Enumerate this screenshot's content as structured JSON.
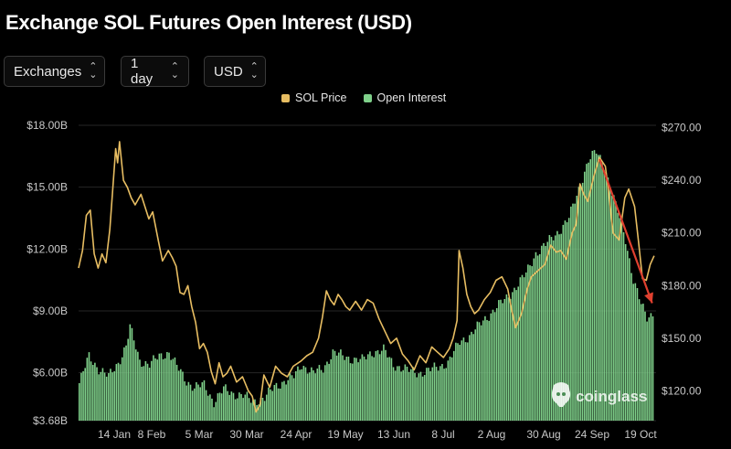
{
  "title": "Exchange SOL Futures Open Interest (USD)",
  "controls": {
    "exchanges": "Exchanges",
    "interval": "1 day",
    "currency": "USD"
  },
  "watermark": "coinglass",
  "colors": {
    "price": "#e7bd62",
    "oi": "#7fd08a",
    "annotation_arrow": "#e0402f",
    "grid": "#262626",
    "background": "#000000"
  },
  "chart_data": {
    "type": "bar+line",
    "title": "Exchange SOL Futures Open Interest (USD)",
    "legend": [
      {
        "name": "SOL Price",
        "color": "#e7bd62"
      },
      {
        "name": "Open Interest",
        "color": "#7fd08a"
      }
    ],
    "legend_position": "top-center",
    "grid": true,
    "x_ticks": [
      "14 Jan",
      "8 Feb",
      "5 Mar",
      "30 Mar",
      "24 Apr",
      "19 May",
      "13 Jun",
      "8 Jul",
      "2 Aug",
      "30 Aug",
      "24 Sep",
      "19 Oct"
    ],
    "left_axis": {
      "labels": [
        "$18.00B",
        "$15.00B",
        "$12.00B",
        "$9.00B",
        "$6.00B",
        "$3.68B"
      ],
      "values": [
        18,
        15,
        12,
        9,
        6,
        3.68
      ],
      "unit": "B USD",
      "range": [
        3.68,
        18
      ]
    },
    "right_axis": {
      "labels": [
        "$270.00",
        "$240.00",
        "$210.00",
        "$180.00",
        "$150.00",
        "$120.00"
      ],
      "values": [
        270,
        240,
        210,
        180,
        150,
        120
      ],
      "range": [
        103,
        275
      ]
    },
    "x_range": [
      "2022-12-31",
      "2023-10-23"
    ],
    "series": [
      {
        "name": "Open Interest",
        "axis": "left",
        "kind": "bar",
        "points": [
          [
            "2022-12-31",
            5.5
          ],
          [
            "2023-01-05",
            6.8
          ],
          [
            "2023-01-10",
            6.2
          ],
          [
            "2023-01-15",
            5.8
          ],
          [
            "2023-01-20",
            6.5
          ],
          [
            "2023-01-24",
            7.3
          ],
          [
            "2023-01-26",
            8.2
          ],
          [
            "2023-01-31",
            6.6
          ],
          [
            "2023-02-05",
            6.4
          ],
          [
            "2023-02-10",
            6.8
          ],
          [
            "2023-02-15",
            7.0
          ],
          [
            "2023-02-19",
            6.3
          ],
          [
            "2023-02-24",
            5.6
          ],
          [
            "2023-02-28",
            5.3
          ],
          [
            "2023-03-05",
            5.4
          ],
          [
            "2023-03-10",
            4.6
          ],
          [
            "2023-03-15",
            5.2
          ],
          [
            "2023-03-20",
            5.0
          ],
          [
            "2023-03-25",
            4.9
          ],
          [
            "2023-03-30",
            4.6
          ],
          [
            "2023-04-05",
            4.8
          ],
          [
            "2023-04-10",
            5.3
          ],
          [
            "2023-04-15",
            5.6
          ],
          [
            "2023-04-20",
            5.8
          ],
          [
            "2023-04-24",
            6.4
          ],
          [
            "2023-04-30",
            6.0
          ],
          [
            "2023-05-05",
            6.2
          ],
          [
            "2023-05-10",
            7.0
          ],
          [
            "2023-05-15",
            6.8
          ],
          [
            "2023-05-19",
            6.7
          ],
          [
            "2023-05-25",
            6.6
          ],
          [
            "2023-05-30",
            7.0
          ],
          [
            "2023-06-05",
            7.1
          ],
          [
            "2023-06-10",
            6.4
          ],
          [
            "2023-06-13",
            6.3
          ],
          [
            "2023-06-18",
            6.1
          ],
          [
            "2023-06-23",
            6.0
          ],
          [
            "2023-06-28",
            6.1
          ],
          [
            "2023-07-03",
            6.3
          ],
          [
            "2023-07-08",
            6.5
          ],
          [
            "2023-07-14",
            7.5
          ],
          [
            "2023-07-19",
            7.8
          ],
          [
            "2023-07-24",
            8.3
          ],
          [
            "2023-07-29",
            8.8
          ],
          [
            "2023-08-02",
            9.2
          ],
          [
            "2023-08-07",
            9.6
          ],
          [
            "2023-08-12",
            10.2
          ],
          [
            "2023-08-17",
            10.8
          ],
          [
            "2023-08-22",
            11.8
          ],
          [
            "2023-08-27",
            12.2
          ],
          [
            "2023-08-30",
            12.5
          ],
          [
            "2023-09-04",
            13.0
          ],
          [
            "2023-09-08",
            13.5
          ],
          [
            "2023-09-12",
            14.6
          ],
          [
            "2023-09-15",
            15.5
          ],
          [
            "2023-09-18",
            16.3
          ],
          [
            "2023-09-22",
            16.7
          ],
          [
            "2023-09-26",
            16.1
          ],
          [
            "2023-09-30",
            14.7
          ],
          [
            "2023-10-03",
            13.8
          ],
          [
            "2023-10-07",
            12.5
          ],
          [
            "2023-10-11",
            10.5
          ],
          [
            "2023-10-15",
            9.3
          ],
          [
            "2023-10-18",
            8.7
          ],
          [
            "2023-10-21",
            8.9
          ]
        ]
      },
      {
        "name": "SOL Price",
        "axis": "right",
        "kind": "line",
        "points": [
          [
            "2022-12-31",
            190
          ],
          [
            "2023-01-02",
            200
          ],
          [
            "2023-01-04",
            220
          ],
          [
            "2023-01-06",
            223
          ],
          [
            "2023-01-08",
            198
          ],
          [
            "2023-01-10",
            190
          ],
          [
            "2023-01-12",
            198
          ],
          [
            "2023-01-14",
            193
          ],
          [
            "2023-01-16",
            212
          ],
          [
            "2023-01-19",
            258
          ],
          [
            "2023-01-20",
            250
          ],
          [
            "2023-01-21",
            262
          ],
          [
            "2023-01-23",
            240
          ],
          [
            "2023-01-25",
            236
          ],
          [
            "2023-01-27",
            230
          ],
          [
            "2023-01-29",
            226
          ],
          [
            "2023-02-01",
            232
          ],
          [
            "2023-02-03",
            225
          ],
          [
            "2023-02-05",
            218
          ],
          [
            "2023-02-07",
            222
          ],
          [
            "2023-02-10",
            205
          ],
          [
            "2023-02-12",
            194
          ],
          [
            "2023-02-15",
            200
          ],
          [
            "2023-02-17",
            196
          ],
          [
            "2023-02-19",
            191
          ],
          [
            "2023-02-21",
            176
          ],
          [
            "2023-02-23",
            175
          ],
          [
            "2023-02-25",
            180
          ],
          [
            "2023-02-27",
            168
          ],
          [
            "2023-03-01",
            159
          ],
          [
            "2023-03-03",
            144
          ],
          [
            "2023-03-05",
            147
          ],
          [
            "2023-03-07",
            142
          ],
          [
            "2023-03-09",
            131
          ],
          [
            "2023-03-11",
            124
          ],
          [
            "2023-03-13",
            136
          ],
          [
            "2023-03-15",
            128
          ],
          [
            "2023-03-17",
            130
          ],
          [
            "2023-03-19",
            134
          ],
          [
            "2023-03-22",
            125
          ],
          [
            "2023-03-25",
            128
          ],
          [
            "2023-03-28",
            120
          ],
          [
            "2023-03-30",
            117
          ],
          [
            "2023-04-01",
            108
          ],
          [
            "2023-04-03",
            112
          ],
          [
            "2023-04-05",
            129
          ],
          [
            "2023-04-08",
            122
          ],
          [
            "2023-04-11",
            134
          ],
          [
            "2023-04-14",
            130
          ],
          [
            "2023-04-17",
            128
          ],
          [
            "2023-04-20",
            134
          ],
          [
            "2023-04-24",
            137
          ],
          [
            "2023-04-27",
            140
          ],
          [
            "2023-04-30",
            142
          ],
          [
            "2023-05-03",
            150
          ],
          [
            "2023-05-05",
            162
          ],
          [
            "2023-05-07",
            177
          ],
          [
            "2023-05-09",
            172
          ],
          [
            "2023-05-11",
            169
          ],
          [
            "2023-05-13",
            175
          ],
          [
            "2023-05-15",
            172
          ],
          [
            "2023-05-17",
            168
          ],
          [
            "2023-05-19",
            166
          ],
          [
            "2023-05-22",
            171
          ],
          [
            "2023-05-25",
            166
          ],
          [
            "2023-05-28",
            172
          ],
          [
            "2023-05-31",
            170
          ],
          [
            "2023-06-03",
            161
          ],
          [
            "2023-06-06",
            154
          ],
          [
            "2023-06-09",
            147
          ],
          [
            "2023-06-12",
            150
          ],
          [
            "2023-06-15",
            141
          ],
          [
            "2023-06-18",
            137
          ],
          [
            "2023-06-21",
            132
          ],
          [
            "2023-06-24",
            140
          ],
          [
            "2023-06-27",
            136
          ],
          [
            "2023-06-30",
            145
          ],
          [
            "2023-07-03",
            142
          ],
          [
            "2023-07-06",
            139
          ],
          [
            "2023-07-09",
            144
          ],
          [
            "2023-07-11",
            150
          ],
          [
            "2023-07-13",
            160
          ],
          [
            "2023-07-14",
            200
          ],
          [
            "2023-07-16",
            190
          ],
          [
            "2023-07-18",
            175
          ],
          [
            "2023-07-20",
            168
          ],
          [
            "2023-07-22",
            164
          ],
          [
            "2023-07-24",
            166
          ],
          [
            "2023-07-27",
            172
          ],
          [
            "2023-07-30",
            176
          ],
          [
            "2023-08-02",
            183
          ],
          [
            "2023-08-05",
            185
          ],
          [
            "2023-08-08",
            178
          ],
          [
            "2023-08-10",
            166
          ],
          [
            "2023-08-12",
            156
          ],
          [
            "2023-08-15",
            164
          ],
          [
            "2023-08-18",
            178
          ],
          [
            "2023-08-20",
            185
          ],
          [
            "2023-08-23",
            188
          ],
          [
            "2023-08-27",
            192
          ],
          [
            "2023-08-30",
            203
          ],
          [
            "2023-09-02",
            199
          ],
          [
            "2023-09-04",
            200
          ],
          [
            "2023-09-07",
            195
          ],
          [
            "2023-09-10",
            210
          ],
          [
            "2023-09-12",
            215
          ],
          [
            "2023-09-14",
            238
          ],
          [
            "2023-09-16",
            232
          ],
          [
            "2023-09-18",
            228
          ],
          [
            "2023-09-21",
            242
          ],
          [
            "2023-09-24",
            253
          ],
          [
            "2023-09-27",
            248
          ],
          [
            "2023-09-29",
            230
          ],
          [
            "2023-10-01",
            210
          ],
          [
            "2023-10-04",
            206
          ],
          [
            "2023-10-07",
            230
          ],
          [
            "2023-10-09",
            235
          ],
          [
            "2023-10-12",
            225
          ],
          [
            "2023-10-14",
            205
          ],
          [
            "2023-10-16",
            184
          ],
          [
            "2023-10-18",
            183
          ],
          [
            "2023-10-20",
            192
          ],
          [
            "2023-10-22",
            197
          ]
        ]
      }
    ],
    "annotations": [
      {
        "type": "arrow",
        "color": "#e0402f",
        "from": [
          "2023-09-24",
          252
        ],
        "to": [
          "2023-10-21",
          170
        ],
        "axis": "right"
      }
    ]
  }
}
